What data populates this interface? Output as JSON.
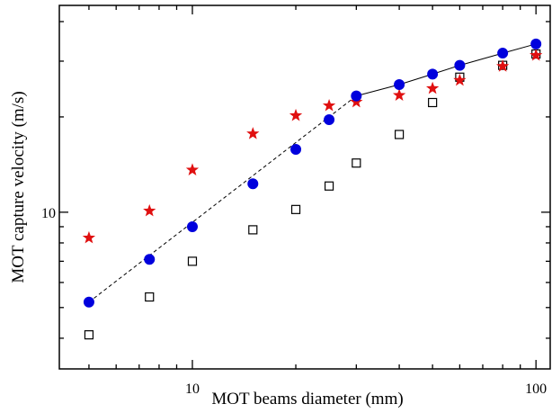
{
  "chart_data": {
    "type": "scatter",
    "title": "",
    "xlabel": "MOT beams diameter (mm)",
    "ylabel": "MOT capture velocity (m/s)",
    "xscale": "log",
    "yscale": "log",
    "xlim": [
      4.1,
      110
    ],
    "ylim": [
      3.2,
      45
    ],
    "x_ticks": [
      {
        "value": 10,
        "label": "10"
      },
      {
        "value": 100,
        "label": "100"
      }
    ],
    "y_ticks": [
      {
        "value": 10,
        "label": "10"
      }
    ],
    "grid": false,
    "legend": "none",
    "series": [
      {
        "marker": "filled-circle",
        "color": "#0000dd",
        "points": [
          [
            5,
            5.2
          ],
          [
            7.5,
            7.1
          ],
          [
            10,
            9.0
          ],
          [
            15,
            12.3
          ],
          [
            20,
            15.8
          ],
          [
            25,
            19.6
          ],
          [
            30,
            23.3
          ],
          [
            40,
            25.3
          ],
          [
            50,
            27.3
          ],
          [
            60,
            29.1
          ],
          [
            80,
            31.8
          ],
          [
            100,
            34.0
          ]
        ]
      },
      {
        "marker": "star",
        "color": "#e01010",
        "points": [
          [
            5,
            8.3
          ],
          [
            7.5,
            10.1
          ],
          [
            10,
            13.6
          ],
          [
            15,
            17.7
          ],
          [
            20,
            20.2
          ],
          [
            25,
            21.7
          ],
          [
            30,
            22.3
          ],
          [
            40,
            23.4
          ],
          [
            50,
            24.6
          ],
          [
            60,
            26.1
          ],
          [
            80,
            28.9
          ],
          [
            100,
            31.3
          ]
        ]
      },
      {
        "marker": "open-square",
        "color": "#000000",
        "points": [
          [
            5,
            4.1
          ],
          [
            7.5,
            5.4
          ],
          [
            10,
            7.0
          ],
          [
            15,
            8.8
          ],
          [
            20,
            10.2
          ],
          [
            25,
            12.1
          ],
          [
            30,
            14.3
          ],
          [
            40,
            17.6
          ],
          [
            50,
            22.2
          ],
          [
            60,
            26.7
          ],
          [
            80,
            29.1
          ],
          [
            100,
            31.6
          ]
        ]
      }
    ],
    "fit_lines": [
      {
        "style": "dashed",
        "points": [
          [
            5,
            5.2
          ],
          [
            30,
            23.3
          ]
        ]
      },
      {
        "style": "solid",
        "points": [
          [
            30,
            23.3
          ],
          [
            40,
            25.3
          ],
          [
            50,
            27.3
          ],
          [
            60,
            29.1
          ],
          [
            80,
            31.8
          ],
          [
            100,
            34.0
          ]
        ]
      }
    ]
  }
}
